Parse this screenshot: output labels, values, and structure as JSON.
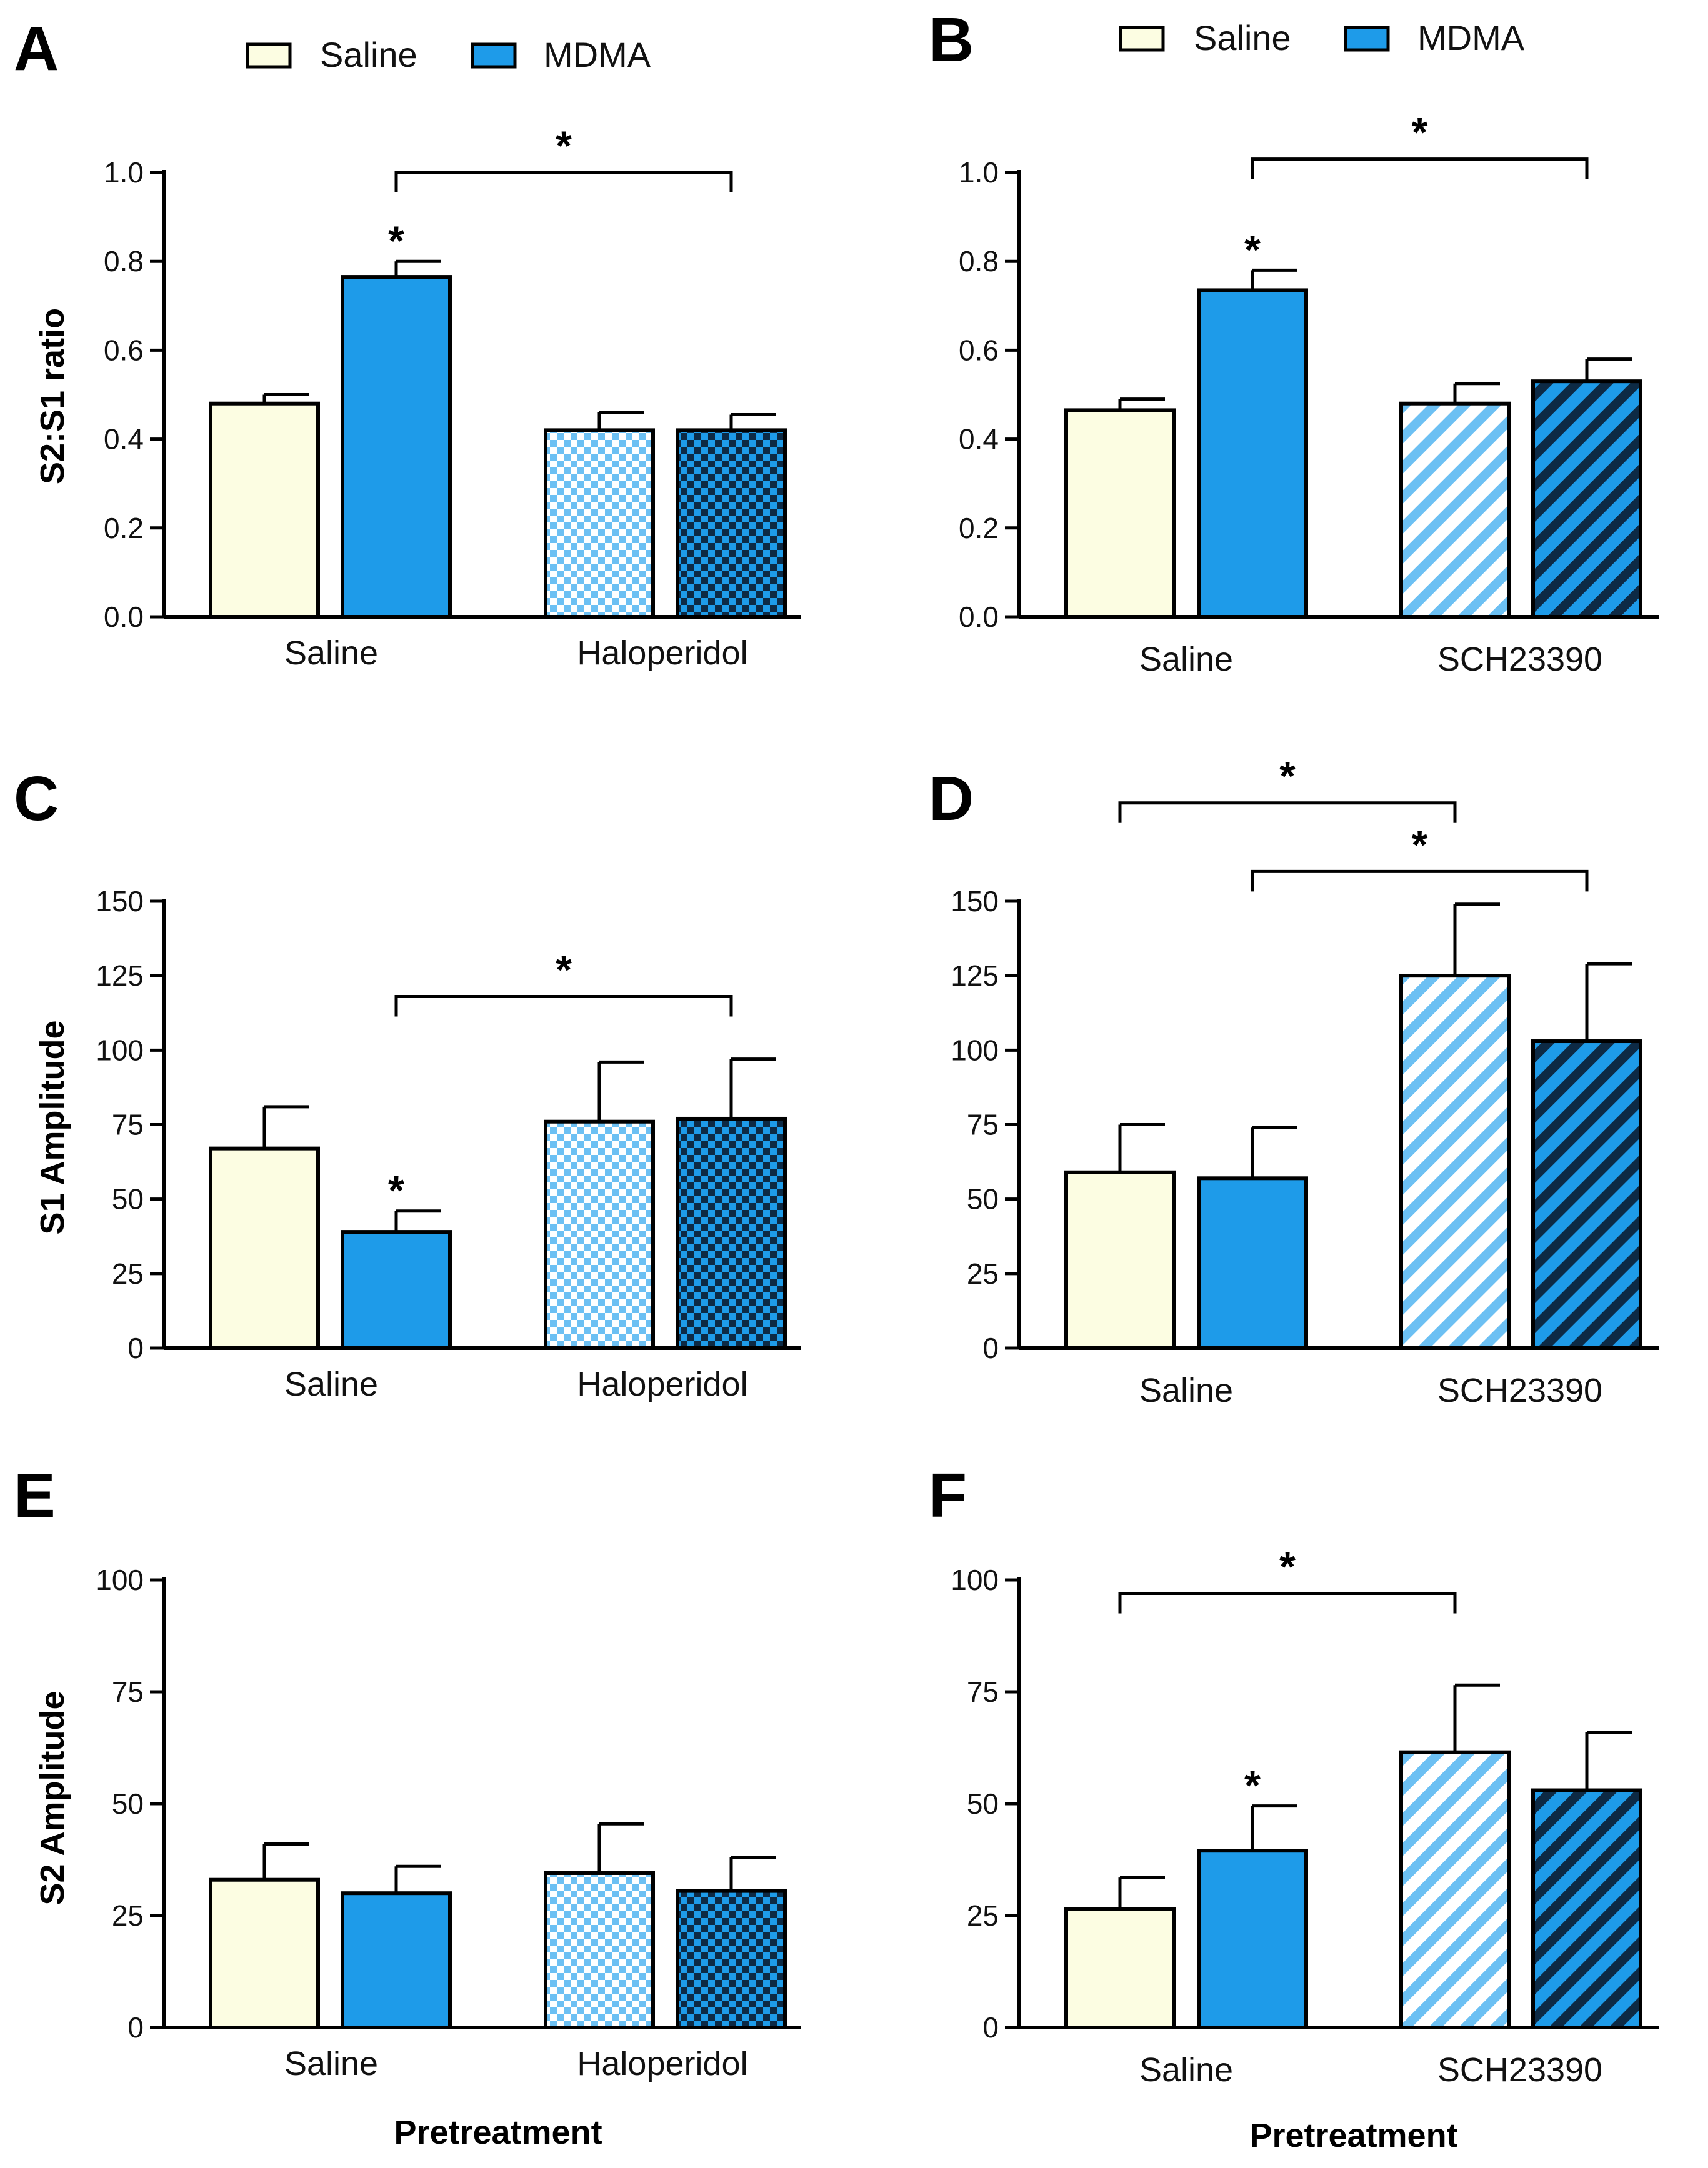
{
  "legend": [
    {
      "name": "Saline",
      "fill": "#fcfde2"
    },
    {
      "name": "MDMA",
      "fill": "#1e9be9"
    }
  ],
  "colors": {
    "saline": "#fcfde2",
    "mdma": "#1e9be9",
    "light_blue": "#6cc0f3",
    "dark_blue": "#1e9be9",
    "dark": "#0d2a45"
  },
  "chart_data": [
    {
      "id": "A",
      "type": "bar",
      "panel_label": "A",
      "ylabel": "S2:S1 ratio",
      "xlabel": "",
      "ylim": [
        0,
        1.0
      ],
      "yticks": [
        "0.0",
        "0.2",
        "0.4",
        "0.6",
        "0.8",
        "1.0"
      ],
      "ytick_values": [
        0,
        0.2,
        0.4,
        0.6,
        0.8,
        1.0
      ],
      "categories": [
        "Saline",
        "Haloperidol"
      ],
      "bars": [
        {
          "group": 0,
          "pos": 0,
          "value": 0.48,
          "err": 0.02,
          "pattern": "saline",
          "star": false
        },
        {
          "group": 0,
          "pos": 1,
          "value": 0.765,
          "err": 0.035,
          "pattern": "mdma",
          "star": true
        },
        {
          "group": 1,
          "pos": 0,
          "value": 0.42,
          "err": 0.04,
          "pattern": "check_light",
          "star": false
        },
        {
          "group": 1,
          "pos": 1,
          "value": 0.42,
          "err": 0.035,
          "pattern": "check_dark",
          "star": false
        }
      ],
      "brackets": [
        {
          "from": 1,
          "to": 3,
          "level": 1.0,
          "label": "*"
        }
      ],
      "star_label": "*"
    },
    {
      "id": "B",
      "type": "bar",
      "panel_label": "B",
      "ylabel": "",
      "xlabel": "",
      "ylim": [
        0,
        1.0
      ],
      "yticks": [
        "0.0",
        "0.2",
        "0.4",
        "0.6",
        "0.8",
        "1.0"
      ],
      "ytick_values": [
        0,
        0.2,
        0.4,
        0.6,
        0.8,
        1.0
      ],
      "categories": [
        "Saline",
        "SCH23390"
      ],
      "bars": [
        {
          "group": 0,
          "pos": 0,
          "value": 0.465,
          "err": 0.025,
          "pattern": "saline",
          "star": false
        },
        {
          "group": 0,
          "pos": 1,
          "value": 0.735,
          "err": 0.045,
          "pattern": "mdma",
          "star": true
        },
        {
          "group": 1,
          "pos": 0,
          "value": 0.48,
          "err": 0.045,
          "pattern": "stripe_light",
          "star": false
        },
        {
          "group": 1,
          "pos": 1,
          "value": 0.53,
          "err": 0.05,
          "pattern": "stripe_dark",
          "star": false
        }
      ],
      "brackets": [
        {
          "from": 1,
          "to": 3,
          "level": 1.03,
          "label": "*"
        }
      ],
      "star_label": "*"
    },
    {
      "id": "C",
      "type": "bar",
      "panel_label": "C",
      "ylabel": "S1 Amplitude",
      "xlabel": "",
      "ylim": [
        0,
        150
      ],
      "yticks": [
        "0",
        "25",
        "50",
        "75",
        "100",
        "125",
        "150"
      ],
      "ytick_values": [
        0,
        25,
        50,
        75,
        100,
        125,
        150
      ],
      "categories": [
        "Saline",
        "Haloperidol"
      ],
      "bars": [
        {
          "group": 0,
          "pos": 0,
          "value": 67,
          "err": 14,
          "pattern": "saline",
          "star": false
        },
        {
          "group": 0,
          "pos": 1,
          "value": 39,
          "err": 7,
          "pattern": "mdma",
          "star": true
        },
        {
          "group": 1,
          "pos": 0,
          "value": 76,
          "err": 20,
          "pattern": "check_light",
          "star": false
        },
        {
          "group": 1,
          "pos": 1,
          "value": 77,
          "err": 20,
          "pattern": "check_dark",
          "star": false
        }
      ],
      "brackets": [
        {
          "from": 1,
          "to": 3,
          "level": 118,
          "label": "*"
        }
      ],
      "star_label": "*"
    },
    {
      "id": "D",
      "type": "bar",
      "panel_label": "D",
      "ylabel": "",
      "xlabel": "",
      "ylim": [
        0,
        150
      ],
      "yticks": [
        "0",
        "25",
        "50",
        "75",
        "100",
        "125",
        "150"
      ],
      "ytick_values": [
        0,
        25,
        50,
        75,
        100,
        125,
        150
      ],
      "categories": [
        "Saline",
        "SCH23390"
      ],
      "bars": [
        {
          "group": 0,
          "pos": 0,
          "value": 59,
          "err": 16,
          "pattern": "saline",
          "star": false
        },
        {
          "group": 0,
          "pos": 1,
          "value": 57,
          "err": 17,
          "pattern": "mdma",
          "star": false
        },
        {
          "group": 1,
          "pos": 0,
          "value": 125,
          "err": 24,
          "pattern": "stripe_light",
          "star": false
        },
        {
          "group": 1,
          "pos": 1,
          "value": 103,
          "err": 26,
          "pattern": "stripe_dark",
          "star": false
        }
      ],
      "brackets": [
        {
          "from": 0,
          "to": 2,
          "level": 183,
          "label": "*"
        },
        {
          "from": 1,
          "to": 3,
          "level": 160,
          "label": "*"
        }
      ],
      "star_label": "*"
    },
    {
      "id": "E",
      "type": "bar",
      "panel_label": "E",
      "ylabel": "S2 Amplitude",
      "xlabel": "Pretreatment",
      "ylim": [
        0,
        100
      ],
      "yticks": [
        "0",
        "25",
        "50",
        "75",
        "100"
      ],
      "ytick_values": [
        0,
        25,
        50,
        75,
        100
      ],
      "categories": [
        "Saline",
        "Haloperidol"
      ],
      "bars": [
        {
          "group": 0,
          "pos": 0,
          "value": 33,
          "err": 8,
          "pattern": "saline",
          "star": false
        },
        {
          "group": 0,
          "pos": 1,
          "value": 30,
          "err": 6,
          "pattern": "mdma",
          "star": false
        },
        {
          "group": 1,
          "pos": 0,
          "value": 34.5,
          "err": 11,
          "pattern": "check_light",
          "star": false
        },
        {
          "group": 1,
          "pos": 1,
          "value": 30.5,
          "err": 7.5,
          "pattern": "check_dark",
          "star": false
        }
      ],
      "brackets": [],
      "star_label": "*"
    },
    {
      "id": "F",
      "type": "bar",
      "panel_label": "F",
      "ylabel": "",
      "xlabel": "Pretreatment",
      "ylim": [
        0,
        100
      ],
      "yticks": [
        "0",
        "25",
        "50",
        "75",
        "100"
      ],
      "ytick_values": [
        0,
        25,
        50,
        75,
        100
      ],
      "categories": [
        "Saline",
        "SCH23390"
      ],
      "bars": [
        {
          "group": 0,
          "pos": 0,
          "value": 26.5,
          "err": 7,
          "pattern": "saline",
          "star": false
        },
        {
          "group": 0,
          "pos": 1,
          "value": 39.5,
          "err": 10,
          "pattern": "mdma",
          "star": true
        },
        {
          "group": 1,
          "pos": 0,
          "value": 61.5,
          "err": 15,
          "pattern": "stripe_light",
          "star": false
        },
        {
          "group": 1,
          "pos": 1,
          "value": 53,
          "err": 13,
          "pattern": "stripe_dark",
          "star": false
        }
      ],
      "brackets": [
        {
          "from": 0,
          "to": 2,
          "level": 97,
          "label": "*"
        }
      ],
      "star_label": "*"
    }
  ]
}
